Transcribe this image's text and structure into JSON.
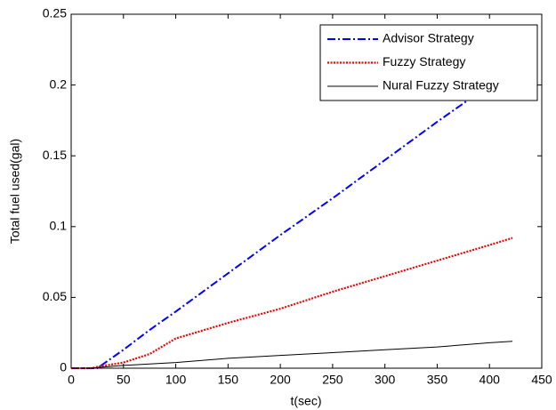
{
  "chart_data": {
    "type": "line",
    "xlabel": "t(sec)",
    "ylabel": "Total fuel used(gal)",
    "x": [
      0,
      20,
      25,
      50,
      75,
      100,
      150,
      200,
      250,
      300,
      350,
      400,
      422
    ],
    "series": [
      {
        "name": "Advisor Strategy",
        "color": "#0000ff",
        "dash": "dashdot",
        "values": [
          0,
          0,
          0,
          0.013,
          0.027,
          0.04,
          0.067,
          0.094,
          0.12,
          0.147,
          0.174,
          0.2,
          0.212
        ]
      },
      {
        "name": "Fuzzy Strategy",
        "color": "#ff0000",
        "dash": "dotted",
        "values": [
          0,
          0,
          0.001,
          0.004,
          0.01,
          0.021,
          0.032,
          0.042,
          0.054,
          0.065,
          0.076,
          0.087,
          0.092
        ]
      },
      {
        "name": "Nural Fuzzy Strategy",
        "color": "#000000",
        "dash": "solid",
        "values": [
          0,
          0,
          0.0005,
          0.002,
          0.003,
          0.004,
          0.007,
          0.009,
          0.011,
          0.013,
          0.015,
          0.018,
          0.019
        ]
      }
    ],
    "xlim": [
      0,
      450
    ],
    "xticks": [
      0,
      50,
      100,
      150,
      200,
      250,
      300,
      350,
      400,
      450
    ],
    "ylim": [
      0,
      0.25
    ],
    "yticks": [
      0,
      0.05,
      0.1,
      0.15,
      0.2,
      0.25
    ],
    "grid": false,
    "legend": "upper right"
  }
}
